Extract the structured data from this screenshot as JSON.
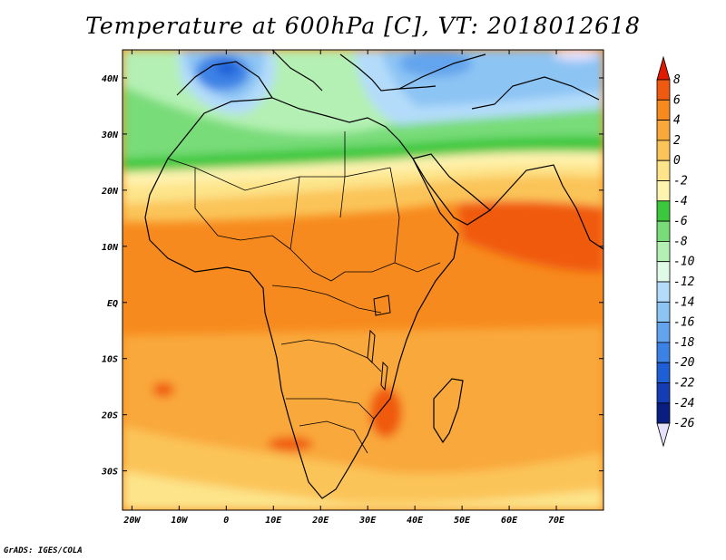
{
  "title": "Temperature at 600hPa [C], VT: 2018012618",
  "credit": "GrADS: IGES/COLA",
  "map": {
    "projection": "lat-lon",
    "lon_range": [
      -22,
      80
    ],
    "lat_range": [
      -37,
      45
    ],
    "lon_ticks": [
      "20W",
      "10W",
      "0",
      "10E",
      "20E",
      "30E",
      "40E",
      "50E",
      "60E",
      "70E"
    ],
    "lat_ticks": [
      "40N",
      "30N",
      "20N",
      "10N",
      "EQ",
      "10S",
      "20S",
      "30S"
    ]
  },
  "colorbar": {
    "labels": [
      "8",
      "6",
      "4",
      "2",
      "0",
      "-2",
      "-4",
      "-6",
      "-8",
      "-10",
      "-12",
      "-14",
      "-16",
      "-18",
      "-20",
      "-22",
      "-24",
      "-26"
    ],
    "colors": [
      "#e01a00",
      "#f05a10",
      "#f78a1e",
      "#f9a83a",
      "#fbc458",
      "#fde48a",
      "#fff3b0",
      "#3cc83c",
      "#78dc78",
      "#b4f0b4",
      "#e0fae8",
      "#b4dcfa",
      "#8cc4f4",
      "#64a4ee",
      "#3c82e6",
      "#1e5ed6",
      "#143cb4",
      "#0a1e82",
      "#e6e0fa"
    ]
  }
}
